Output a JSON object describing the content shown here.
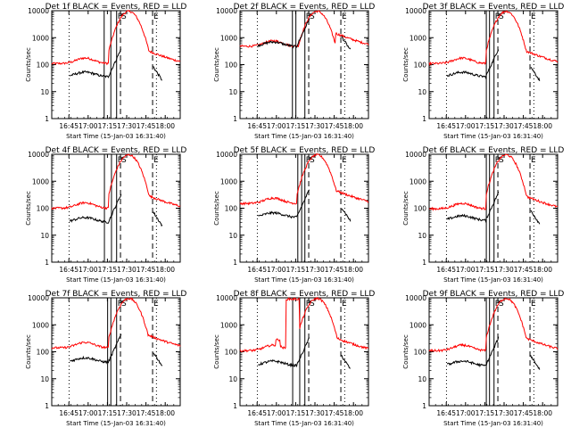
{
  "chart_data": {
    "type": "line",
    "layout": "3x3 grid of panels",
    "ylabel": "Counts/sec",
    "xlabel": "Start Time (15-Jan-03 16:31:40)",
    "x_units": "minutes after 16:31:40",
    "xlim": [
      0,
      100
    ],
    "y_scale": "log",
    "ylim": [
      1,
      10000
    ],
    "y_tick_labels": [
      "1",
      "10",
      "100",
      "1000",
      "10000"
    ],
    "x_ticks": [
      {
        "minutes": 13.33,
        "label": "16:45"
      },
      {
        "minutes": 28.33,
        "label": "17:00"
      },
      {
        "minutes": 43.33,
        "label": "17:15"
      },
      {
        "minutes": 58.33,
        "label": "17:30"
      },
      {
        "minutes": 73.33,
        "label": "17:45"
      },
      {
        "minutes": 88.33,
        "label": "18:00"
      }
    ],
    "series_colors": {
      "events": "#000000",
      "lld": "#ff0000"
    },
    "markers": [
      {
        "label": "P",
        "minutes": 50.5,
        "style": "solid"
      },
      {
        "label": "S",
        "minutes": 53.5,
        "style": "dashed"
      },
      {
        "label": "E",
        "minutes": 78.5,
        "style": "dashed"
      }
    ],
    "dotted_lines_minutes": [
      13.5,
      81.5
    ],
    "panels": [
      {
        "title": "Det 1f BLACK = Events, RED = LLD",
        "lld_base": 110,
        "events_base": 35,
        "extra_solid_minutes": [
          40.8,
          46.0
        ]
      },
      {
        "title": "Det 2f BLACK = Events, RED = LLD",
        "lld_base": 480,
        "events_base": 460,
        "extra_solid_minutes": [
          40.8,
          43.5
        ]
      },
      {
        "title": "Det 3f BLACK = Events, RED = LLD",
        "lld_base": 110,
        "events_base": 35,
        "extra_solid_minutes": [
          44.5,
          47.0
        ]
      },
      {
        "title": "Det 4f BLACK = Events, RED = LLD",
        "lld_base": 100,
        "events_base": 30,
        "extra_solid_minutes": [
          41.0,
          46.5
        ]
      },
      {
        "title": "Det 5f BLACK = Events, RED = LLD",
        "lld_base": 150,
        "events_base": 45,
        "extra_solid_minutes": [
          45.0,
          48.0
        ]
      },
      {
        "title": "Det 6f BLACK = Events, RED = LLD",
        "lld_base": 95,
        "events_base": 35,
        "extra_solid_minutes": [
          44.5,
          47.0
        ]
      },
      {
        "title": "Det 7f BLACK = Events, RED = LLD",
        "lld_base": 140,
        "events_base": 40,
        "extra_solid_minutes": [
          43.5,
          46.0
        ]
      },
      {
        "title": "Det 8f BLACK = Events, RED = LLD",
        "lld_base": 110,
        "events_base": 30,
        "extra_solid_minutes": [
          41.0,
          46.5
        ],
        "spikes": [
          {
            "from": 36,
            "to": 46,
            "value": 9000
          },
          {
            "from": 28,
            "to": 31,
            "value": 280
          }
        ]
      },
      {
        "title": "Det 9f BLACK = Events, RED = LLD",
        "lld_base": 110,
        "events_base": 30,
        "extra_solid_minutes": [
          44.5,
          47.0
        ]
      }
    ]
  }
}
